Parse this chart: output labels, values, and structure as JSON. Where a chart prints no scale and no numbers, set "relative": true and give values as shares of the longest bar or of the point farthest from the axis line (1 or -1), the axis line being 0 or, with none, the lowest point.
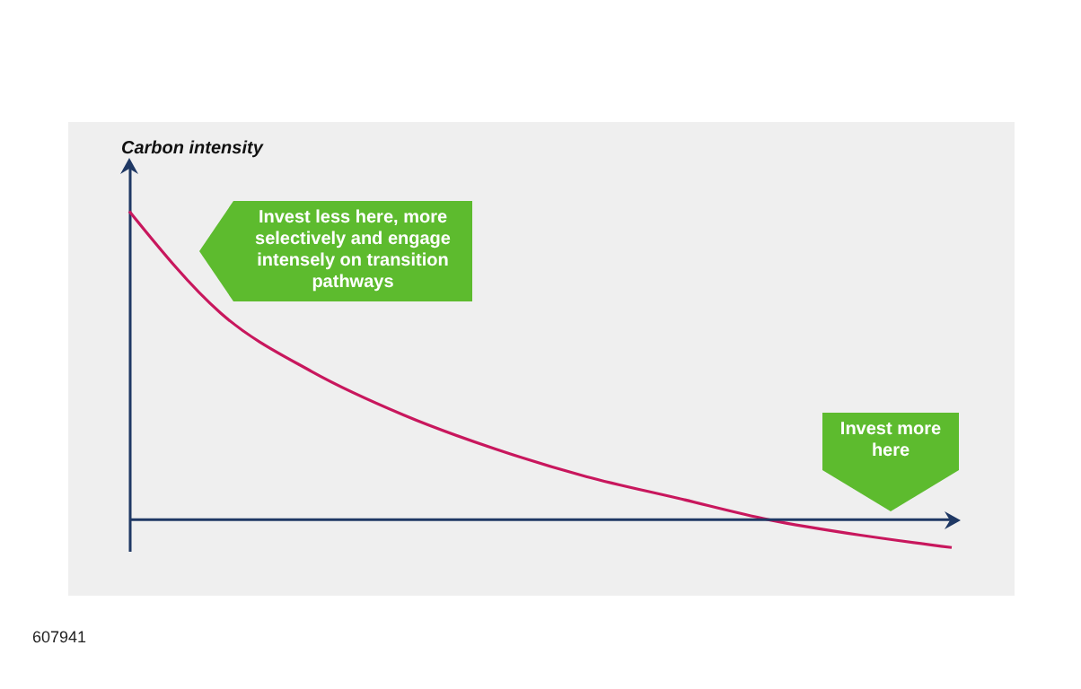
{
  "chart_data": {
    "type": "line",
    "relative": true,
    "ylabel": "Carbon intensity",
    "categories": [
      null,
      null,
      null,
      null,
      null,
      null,
      null,
      null,
      null,
      null
    ],
    "series": [
      {
        "color": "#c8175d",
        "values": [
          1.0,
          0.67,
          0.48,
          0.34,
          0.23,
          0.14,
          0.07,
          0.0,
          -0.05,
          -0.09
        ]
      }
    ],
    "ref_lines": [
      {
        "axis": "y",
        "value": 0,
        "color": "#1f3864"
      }
    ],
    "annotations": [
      "Invest less here, more selectively and engage intensely on transition pathways",
      "Invest more here",
      "607941"
    ]
  }
}
